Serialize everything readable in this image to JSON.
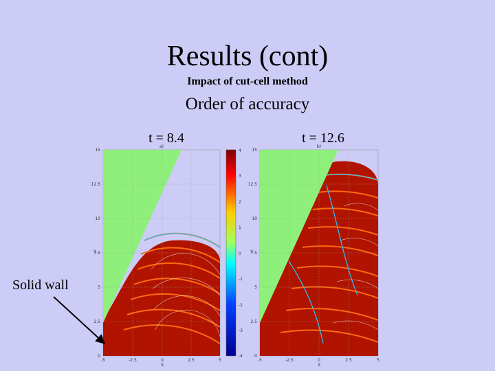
{
  "slide": {
    "title": "Results (cont)",
    "subtitle": "Impact of cut-cell method",
    "heading": "Order of accuracy",
    "callout": "Solid wall"
  },
  "panels": [
    {
      "label": "t = 8.4",
      "panel_title": "a)",
      "x_ticks": [
        "-5",
        "-2.5",
        "0",
        "2.5",
        "5"
      ],
      "y_ticks": [
        "0",
        "2.5",
        "5",
        "7.5",
        "10",
        "12.5",
        "15"
      ],
      "xlabel": "X",
      "ylabel": "Y"
    },
    {
      "label": "t = 12.6",
      "panel_title": "b)",
      "x_ticks": [
        "-5",
        "-2.5",
        "0",
        "2.5",
        "5"
      ],
      "y_ticks": [
        "0",
        "2.5",
        "5",
        "7.5",
        "10",
        "12.5",
        "15"
      ],
      "xlabel": "X",
      "ylabel": "Y"
    }
  ],
  "colorbar": {
    "ticks": [
      "4",
      "3",
      "2",
      "1",
      "0",
      "-1",
      "-2",
      "-3",
      "-4"
    ]
  },
  "colors": {
    "background": "#ccccf6",
    "wall": "#8ef07a",
    "field": "#b01400",
    "wave": "#ff6a10"
  }
}
